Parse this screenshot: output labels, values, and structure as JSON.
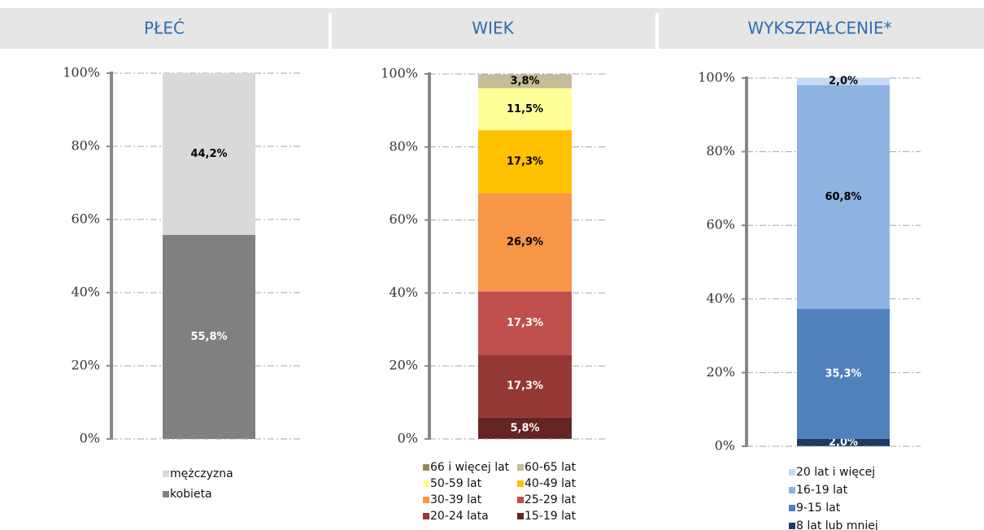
{
  "chart_data": [
    {
      "type": "bar",
      "stacked": true,
      "title": "PŁEĆ",
      "categories": [
        null
      ],
      "grid": true,
      "legend": "bottom",
      "ylim": [
        0,
        100
      ],
      "yticks": [
        {
          "value": 0,
          "label": "0%"
        },
        {
          "value": 20,
          "label": "20%"
        },
        {
          "value": 40,
          "label": "40%"
        },
        {
          "value": 60,
          "label": "60%"
        },
        {
          "value": 80,
          "label": "80%"
        },
        {
          "value": 100,
          "label": "100%"
        }
      ],
      "series": [
        {
          "name": "kobieta",
          "color": "#808080",
          "values": [
            55.8
          ],
          "value_labels": [
            "55,8%"
          ]
        },
        {
          "name": "mężczyzna",
          "color": "#d9d9d9",
          "values": [
            44.2
          ],
          "value_labels": [
            "44,2%"
          ]
        }
      ]
    },
    {
      "type": "bar",
      "stacked": true,
      "title": "WIEK",
      "categories": [
        null
      ],
      "grid": true,
      "legend": "bottom",
      "ylim": [
        0,
        100
      ],
      "yticks": [
        {
          "value": 0,
          "label": "0%"
        },
        {
          "value": 20,
          "label": "20%"
        },
        {
          "value": 40,
          "label": "40%"
        },
        {
          "value": 60,
          "label": "60%"
        },
        {
          "value": 80,
          "label": "80%"
        },
        {
          "value": 100,
          "label": "100%"
        }
      ],
      "series": [
        {
          "name": "15-19 lat",
          "color": "#632523",
          "values": [
            5.8
          ],
          "value_labels": [
            "5,8%"
          ]
        },
        {
          "name": "20-24 lata",
          "color": "#953735",
          "values": [
            17.3
          ],
          "value_labels": [
            "17,3%"
          ]
        },
        {
          "name": "25-29 lat",
          "color": "#c0504d",
          "values": [
            17.3
          ],
          "value_labels": [
            "17,3%"
          ]
        },
        {
          "name": "30-39 lat",
          "color": "#f79646",
          "values": [
            26.9
          ],
          "value_labels": [
            "26,9%"
          ]
        },
        {
          "name": "40-49 lat",
          "color": "#ffc000",
          "values": [
            17.3
          ],
          "value_labels": [
            "17,3%"
          ]
        },
        {
          "name": "50-59 lat",
          "color": "#ffff99",
          "values": [
            11.5
          ],
          "value_labels": [
            "11,5%"
          ]
        },
        {
          "name": "60-65 lat",
          "color": "#c4bd97",
          "values": [
            3.8
          ],
          "value_labels": [
            "3,8%"
          ]
        },
        {
          "name": "66 i więcej lat",
          "color": "#948a54",
          "values": [
            0
          ]
        }
      ]
    },
    {
      "type": "bar",
      "stacked": true,
      "title": "WYKSZTAŁCENIE*",
      "categories": [
        null
      ],
      "grid": true,
      "legend": "bottom",
      "ylim": [
        0,
        100
      ],
      "yticks": [
        {
          "value": 0,
          "label": "0%"
        },
        {
          "value": 20,
          "label": "20%"
        },
        {
          "value": 40,
          "label": "40%"
        },
        {
          "value": 60,
          "label": "60%"
        },
        {
          "value": 80,
          "label": "80%"
        },
        {
          "value": 100,
          "label": "100%"
        }
      ],
      "series": [
        {
          "name": "8 lat lub mniej",
          "color": "#1f3864",
          "values": [
            2.0
          ],
          "value_labels": [
            "2,0%"
          ]
        },
        {
          "name": "9-15 lat",
          "color": "#4f81bd",
          "values": [
            35.3
          ],
          "value_labels": [
            "35,3%"
          ]
        },
        {
          "name": "16-19 lat",
          "color": "#8db3e2",
          "values": [
            60.8
          ],
          "value_labels": [
            "60,8%"
          ]
        },
        {
          "name": "20 lat i więcej",
          "color": "#c6d9f1",
          "values": [
            2.0
          ],
          "value_labels": [
            "2,0%"
          ]
        }
      ]
    }
  ]
}
